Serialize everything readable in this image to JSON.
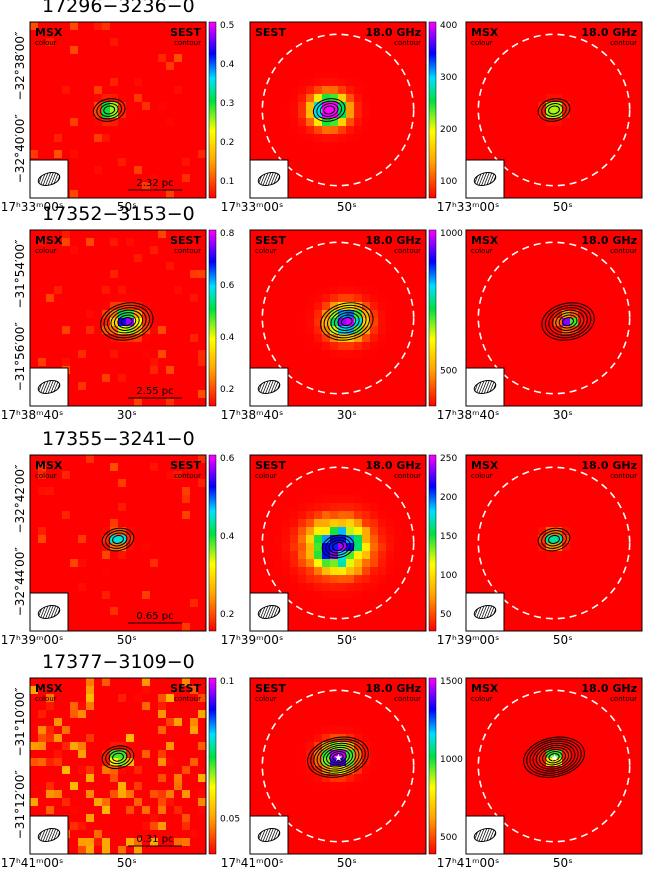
{
  "rows": [
    {
      "title": "17296−3236−0",
      "y_ticks": [
        "−32°38′00″",
        "−32°40′00″"
      ],
      "x_ticks": [
        "17ʰ33ᵐ00ˢ",
        "50ˢ"
      ],
      "scale": "2.32 pc",
      "panels": [
        {
          "left": "MSX",
          "left_sub": "colour",
          "right": "SEST",
          "right_sub": "contour",
          "colorbar": [
            "0.5",
            "0.4",
            "0.3",
            "0.2",
            "0.1"
          ]
        },
        {
          "left": "SEST",
          "right": "18.0 GHz",
          "right_sub": "contour",
          "colorbar": [
            "400",
            "300",
            "200",
            "100"
          ]
        },
        {
          "left": "MSX",
          "left_sub": "colour",
          "right": "18.0 GHz",
          "right_sub": "contour"
        }
      ]
    },
    {
      "title": "17352−3153−0",
      "y_ticks": [
        "−31°54′00″",
        "−31°56′00″"
      ],
      "x_ticks": [
        "17ʰ38ᵐ40ˢ",
        "30ˢ"
      ],
      "scale": "2.55 pc",
      "panels": [
        {
          "left": "MSX",
          "left_sub": "colour",
          "right": "SEST",
          "right_sub": "contour",
          "colorbar": [
            "0.8",
            "0.6",
            "0.4",
            "0.2"
          ]
        },
        {
          "left": "SEST",
          "left_sub": "colour",
          "right": "18.0 GHz",
          "right_sub": "contour",
          "colorbar": [
            "1000",
            "500"
          ]
        },
        {
          "left": "MSX",
          "left_sub": "colour",
          "right": "18.0 GHz",
          "right_sub": "contour"
        }
      ]
    },
    {
      "title": "17355−3241−0",
      "y_ticks": [
        "−32°42′00″",
        "−32°44′00″"
      ],
      "x_ticks": [
        "17ʰ39ᵐ00ˢ",
        "50ˢ"
      ],
      "scale": "0.65 pc",
      "panels": [
        {
          "left": "MSX",
          "left_sub": "colour",
          "right": "SEST",
          "right_sub": "contour",
          "colorbar": [
            "0.6",
            "0.4",
            "0.2"
          ]
        },
        {
          "left": "SEST",
          "left_sub": "colour",
          "right": "18.0 GHz",
          "right_sub": "contour",
          "colorbar": [
            "250",
            "200",
            "150",
            "100",
            "50"
          ]
        },
        {
          "left": "MSX",
          "left_sub": "colour",
          "right": "18.0 GHz",
          "right_sub": "contour"
        }
      ]
    },
    {
      "title": "17377−3109−0",
      "y_ticks": [
        "−31°10′00″",
        "−31°12′00″"
      ],
      "x_ticks": [
        "17ʰ41ᵐ00ˢ",
        "50ˢ"
      ],
      "scale": "0.31 pc",
      "panels": [
        {
          "left": "MSX",
          "left_sub": "colour",
          "right": "SEST",
          "right_sub": "contour",
          "colorbar": [
            "0.1",
            "0.05"
          ]
        },
        {
          "left": "SEST",
          "left_sub": "colour",
          "right": "18.0 GHz",
          "right_sub": "contour",
          "colorbar": [
            "1500",
            "1000",
            "500"
          ]
        },
        {
          "left": "MSX",
          "left_sub": "colour",
          "right": "18.0 GHz",
          "right_sub": "contour"
        }
      ]
    }
  ]
}
